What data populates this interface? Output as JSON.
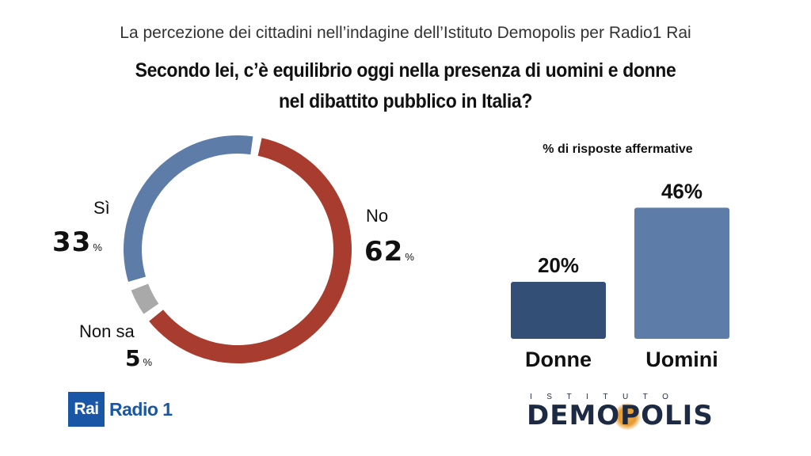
{
  "header": {
    "supertitle": "La percezione dei cittadini nell’indagine dell’Istituto Demopolis per Radio1 Rai",
    "question_line1": "Secondo lei, c’è equilibrio oggi nella presenza di uomini e donne",
    "question_line2": "nel dibattito pubblico in Italia?"
  },
  "chart_data": [
    {
      "type": "pie",
      "variant": "donut",
      "slices": [
        {
          "label": "No",
          "value": 62,
          "display": "62",
          "unit": "%",
          "color": "#a83c2e"
        },
        {
          "label": "Non sa",
          "value": 5,
          "display": "5",
          "unit": "%",
          "color": "#a9a9a9"
        },
        {
          "label": "Sì",
          "value": 33,
          "display": "33",
          "unit": "%",
          "color": "#5e7ca8"
        }
      ]
    },
    {
      "type": "bar",
      "title": "% di risposte affermative",
      "categories": [
        "Donne",
        "Uomini"
      ],
      "values": [
        20,
        46
      ],
      "labels": [
        "20%",
        "46%"
      ],
      "colors": [
        "#344f76",
        "#5e7ca8"
      ]
    }
  ],
  "logos": {
    "rai": "Rai",
    "radio": "Radio 1",
    "demopolis_top": "ISTITUTO",
    "demopolis_main": "DEMOPOLIS"
  }
}
